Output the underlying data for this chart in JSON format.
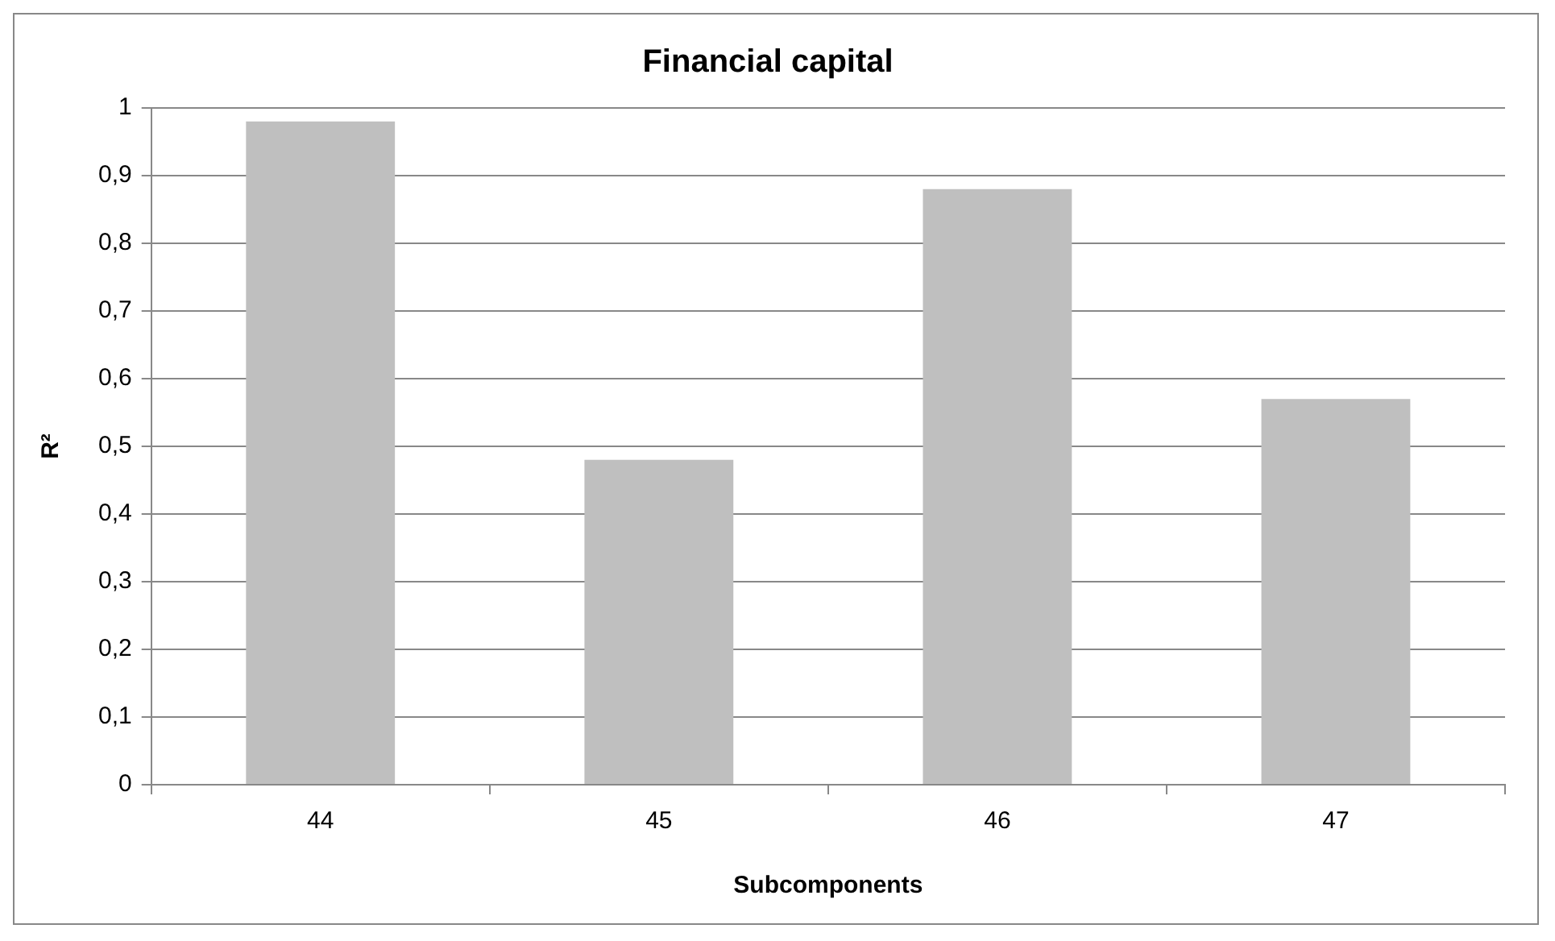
{
  "chart_data": {
    "type": "bar",
    "title": "Financial capital",
    "xlabel": "Subcomponents",
    "ylabel": "R²",
    "categories": [
      "44",
      "45",
      "46",
      "47"
    ],
    "values": [
      0.98,
      0.48,
      0.88,
      0.57
    ],
    "color": "#bfbfbf",
    "ylim": [
      0,
      1
    ],
    "yticks": [
      0,
      {
        "value": 0.1,
        "label": "0,1"
      },
      {
        "value": 0.2,
        "label": "0,2"
      },
      {
        "value": 0.3,
        "label": "0,3"
      },
      {
        "value": 0.4,
        "label": "0,4"
      },
      {
        "value": 0.5,
        "label": "0,5"
      },
      {
        "value": 0.6,
        "label": "0,6"
      },
      {
        "value": 0.7,
        "label": "0,7"
      },
      {
        "value": 0.8,
        "label": "0,8"
      },
      {
        "value": 0.9,
        "label": "0,9"
      },
      1
    ],
    "grid": "y",
    "legend": false
  }
}
